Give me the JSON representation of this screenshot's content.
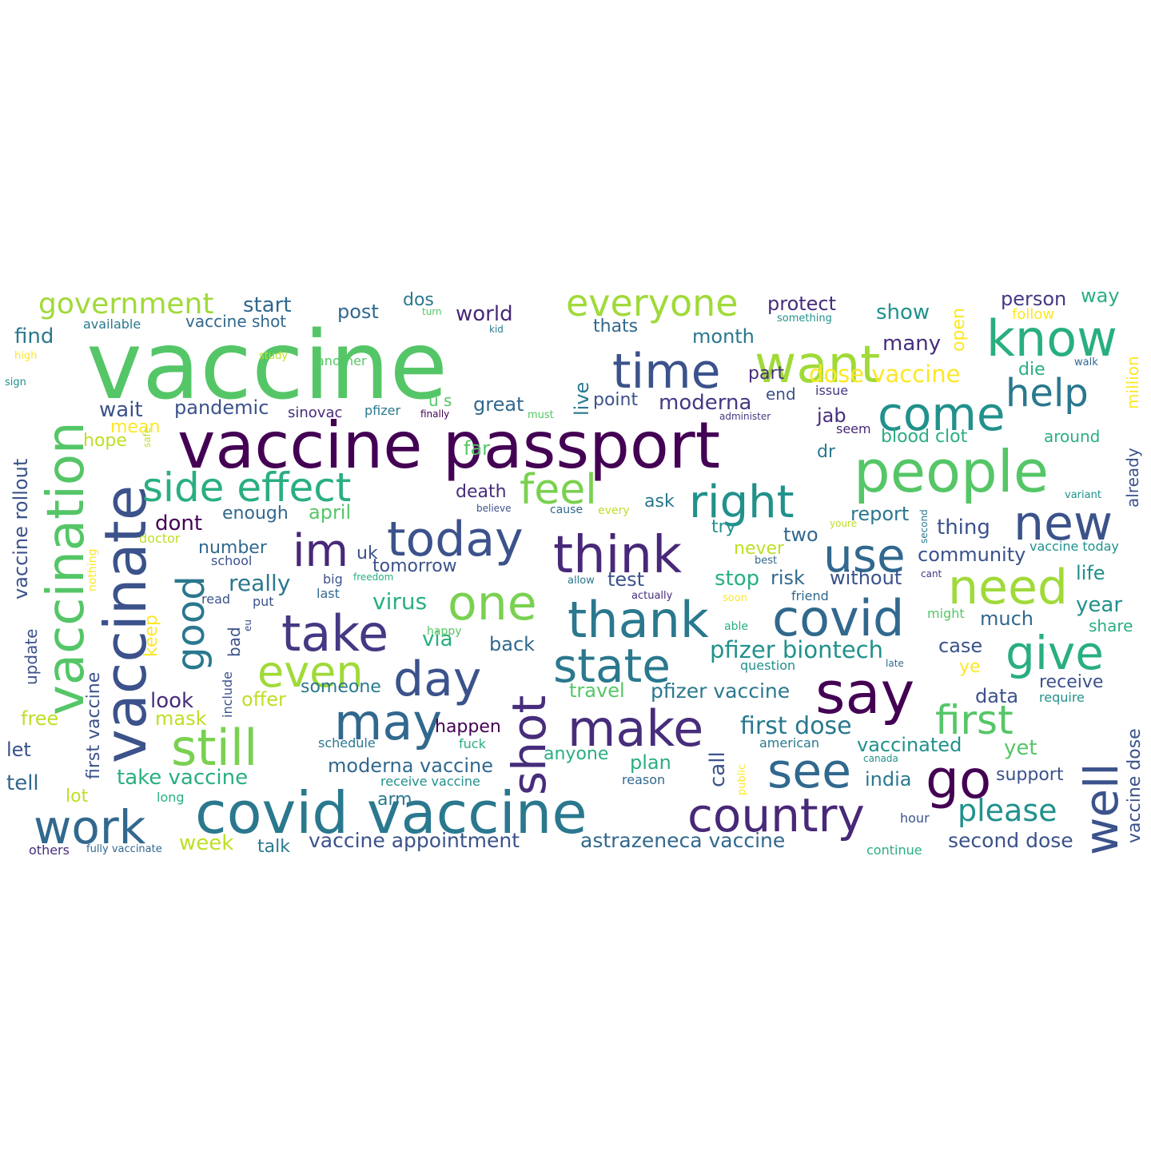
{
  "words": [
    {
      "text": "vaccine",
      "color": "#55c667"
    },
    {
      "text": "vaccine passport",
      "color": "#440154"
    },
    {
      "text": "people",
      "color": "#55c667"
    },
    {
      "text": "covid vaccine",
      "color": "#2a788e"
    },
    {
      "text": "vaccinate",
      "color": "#3b528b"
    },
    {
      "text": "vaccination",
      "color": "#55c667"
    },
    {
      "text": "say",
      "color": "#440154"
    },
    {
      "text": "think",
      "color": "#482878"
    },
    {
      "text": "today",
      "color": "#3b528b"
    },
    {
      "text": "want",
      "color": "#a0da39"
    },
    {
      "text": "know",
      "color": "#29af7f"
    },
    {
      "text": "time",
      "color": "#3b528b"
    },
    {
      "text": "come",
      "color": "#21918c"
    },
    {
      "text": "side effect",
      "color": "#29af7f"
    },
    {
      "text": "right",
      "color": "#21918c"
    },
    {
      "text": "thank",
      "color": "#2a788e"
    },
    {
      "text": "covid",
      "color": "#31688e"
    },
    {
      "text": "state",
      "color": "#2a788e"
    },
    {
      "text": "take",
      "color": "#443983"
    },
    {
      "text": "one",
      "color": "#7ad151"
    },
    {
      "text": "day",
      "color": "#3b528b"
    },
    {
      "text": "may",
      "color": "#31688e"
    },
    {
      "text": "make",
      "color": "#472d7b"
    },
    {
      "text": "still",
      "color": "#7ad151"
    },
    {
      "text": "even",
      "color": "#a0da39"
    },
    {
      "text": "work",
      "color": "#31688e"
    },
    {
      "text": "country",
      "color": "#482878"
    },
    {
      "text": "see",
      "color": "#31688e"
    },
    {
      "text": "go",
      "color": "#440154"
    },
    {
      "text": "well",
      "color": "#3b528b"
    },
    {
      "text": "shot",
      "color": "#472d7b"
    },
    {
      "text": "need",
      "color": "#a0da39"
    },
    {
      "text": "use",
      "color": "#31688e"
    },
    {
      "text": "new",
      "color": "#3b528b"
    },
    {
      "text": "give",
      "color": "#29af7f"
    },
    {
      "text": "first",
      "color": "#55c667"
    },
    {
      "text": "help",
      "color": "#2a788e"
    },
    {
      "text": "good",
      "color": "#2a788e"
    },
    {
      "text": "im",
      "color": "#482878"
    },
    {
      "text": "feel",
      "color": "#7ad151"
    },
    {
      "text": "everyone",
      "color": "#a0da39"
    },
    {
      "text": "government",
      "color": "#a0da39"
    },
    {
      "text": "please",
      "color": "#21918c"
    },
    {
      "text": "vaccine appointment",
      "color": "#3b528b"
    },
    {
      "text": "astrazeneca vaccine",
      "color": "#31688e"
    },
    {
      "text": "second dose",
      "color": "#3b528b"
    },
    {
      "text": "first dose",
      "color": "#2a788e"
    },
    {
      "text": "pfizer biontech",
      "color": "#21918c"
    },
    {
      "text": "pfizer vaccine",
      "color": "#2a788e"
    },
    {
      "text": "dose vaccine",
      "color": "#fde725"
    },
    {
      "text": "moderna vaccine",
      "color": "#31688e"
    },
    {
      "text": "take vaccine",
      "color": "#29af7f"
    },
    {
      "text": "vaccine rollout",
      "color": "#3b528b"
    },
    {
      "text": "first vaccine",
      "color": "#3b528b"
    },
    {
      "text": "vaccine dose",
      "color": "#3b528b"
    },
    {
      "text": "blood clot",
      "color": "#29af7f"
    },
    {
      "text": "vaccine shot",
      "color": "#31688e"
    },
    {
      "text": "vaccine today",
      "color": "#21918c"
    },
    {
      "text": "receive vaccine",
      "color": "#21918c"
    },
    {
      "text": "fully vaccinate",
      "color": "#31688e"
    },
    {
      "text": "start",
      "color": "#31688e"
    },
    {
      "text": "dos",
      "color": "#2a788e"
    },
    {
      "text": "post",
      "color": "#31688e"
    },
    {
      "text": "world",
      "color": "#482878"
    },
    {
      "text": "protect",
      "color": "#472d7b"
    },
    {
      "text": "show",
      "color": "#21918c"
    },
    {
      "text": "open",
      "color": "#fde725"
    },
    {
      "text": "person",
      "color": "#443983"
    },
    {
      "text": "way",
      "color": "#29af7f"
    },
    {
      "text": "thats",
      "color": "#31688e"
    },
    {
      "text": "month",
      "color": "#2a788e"
    },
    {
      "text": "many",
      "color": "#472d7b"
    },
    {
      "text": "find",
      "color": "#2a788e"
    },
    {
      "text": "available",
      "color": "#2a788e"
    },
    {
      "text": "million",
      "color": "#fde725"
    },
    {
      "text": "already",
      "color": "#3b528b"
    },
    {
      "text": "part",
      "color": "#472d7b"
    },
    {
      "text": "die",
      "color": "#29af7f"
    },
    {
      "text": "end",
      "color": "#3b528b"
    },
    {
      "text": "issue",
      "color": "#443983"
    },
    {
      "text": "moderna",
      "color": "#443983"
    },
    {
      "text": "point",
      "color": "#3b528b"
    },
    {
      "text": "live",
      "color": "#2a788e"
    },
    {
      "text": "great",
      "color": "#31688e"
    },
    {
      "text": "pandemic",
      "color": "#3b528b"
    },
    {
      "text": "sinovac",
      "color": "#472d7b"
    },
    {
      "text": "pfizer",
      "color": "#2a788e"
    },
    {
      "text": "wait",
      "color": "#3b528b"
    },
    {
      "text": "mean",
      "color": "#fde725"
    },
    {
      "text": "hope",
      "color": "#bddf26"
    },
    {
      "text": "jab",
      "color": "#472d7b"
    },
    {
      "text": "seem",
      "color": "#482878"
    },
    {
      "text": "around",
      "color": "#29af7f"
    },
    {
      "text": "dr",
      "color": "#2a788e"
    },
    {
      "text": "far",
      "color": "#55c667"
    },
    {
      "text": "death",
      "color": "#472d7b"
    },
    {
      "text": "ask",
      "color": "#2a788e"
    },
    {
      "text": "enough",
      "color": "#31688e"
    },
    {
      "text": "april",
      "color": "#55c667"
    },
    {
      "text": "dont",
      "color": "#440154"
    },
    {
      "text": "report",
      "color": "#2a788e"
    },
    {
      "text": "thing",
      "color": "#3b528b"
    },
    {
      "text": "try",
      "color": "#21918c"
    },
    {
      "text": "two",
      "color": "#31688e"
    },
    {
      "text": "community",
      "color": "#3b528b"
    },
    {
      "text": "number",
      "color": "#31688e"
    },
    {
      "text": "uk",
      "color": "#3b528b"
    },
    {
      "text": "never",
      "color": "#bddf26"
    },
    {
      "text": "tomorrow",
      "color": "#3b528b"
    },
    {
      "text": "really",
      "color": "#2a788e"
    },
    {
      "text": "test",
      "color": "#3b528b"
    },
    {
      "text": "stop",
      "color": "#29af7f"
    },
    {
      "text": "risk",
      "color": "#31688e"
    },
    {
      "text": "without",
      "color": "#3b528b"
    },
    {
      "text": "life",
      "color": "#21918c"
    },
    {
      "text": "virus",
      "color": "#29af7f"
    },
    {
      "text": "year",
      "color": "#21918c"
    },
    {
      "text": "much",
      "color": "#31688e"
    },
    {
      "text": "keep",
      "color": "#fde725"
    },
    {
      "text": "via",
      "color": "#29af7f"
    },
    {
      "text": "back",
      "color": "#31688e"
    },
    {
      "text": "case",
      "color": "#3b528b"
    },
    {
      "text": "share",
      "color": "#29af7f"
    },
    {
      "text": "ye",
      "color": "#fde725"
    },
    {
      "text": "update",
      "color": "#3b528b"
    },
    {
      "text": "bad",
      "color": "#3b528b"
    },
    {
      "text": "someone",
      "color": "#2a788e"
    },
    {
      "text": "receive",
      "color": "#3b528b"
    },
    {
      "text": "look",
      "color": "#472d7b"
    },
    {
      "text": "offer",
      "color": "#bddf26"
    },
    {
      "text": "travel",
      "color": "#55c667"
    },
    {
      "text": "data",
      "color": "#3b528b"
    },
    {
      "text": "free",
      "color": "#bddf26"
    },
    {
      "text": "mask",
      "color": "#bddf26"
    },
    {
      "text": "happen",
      "color": "#440154"
    },
    {
      "text": "call",
      "color": "#3b528b"
    },
    {
      "text": "let",
      "color": "#3b528b"
    },
    {
      "text": "anyone",
      "color": "#29af7f"
    },
    {
      "text": "plan",
      "color": "#29af7f"
    },
    {
      "text": "vaccinated",
      "color": "#21918c"
    },
    {
      "text": "yet",
      "color": "#55c667"
    },
    {
      "text": "tell",
      "color": "#31688e"
    },
    {
      "text": "india",
      "color": "#2a788e"
    },
    {
      "text": "support",
      "color": "#3b528b"
    },
    {
      "text": "lot",
      "color": "#bddf26"
    },
    {
      "text": "arm",
      "color": "#2a788e"
    },
    {
      "text": "week",
      "color": "#bddf26"
    },
    {
      "text": "talk",
      "color": "#2a788e"
    },
    {
      "text": "others",
      "color": "#472d7b"
    },
    {
      "text": "continue",
      "color": "#29af7f"
    },
    {
      "text": "hour",
      "color": "#3b528b"
    },
    {
      "text": "turn",
      "color": "#55c667"
    },
    {
      "text": "kid",
      "color": "#2a788e"
    },
    {
      "text": "something",
      "color": "#21918c"
    },
    {
      "text": "follow",
      "color": "#fde725"
    },
    {
      "text": "high",
      "color": "#fde725"
    },
    {
      "text": "study",
      "color": "#bddf26"
    },
    {
      "text": "another",
      "color": "#55c667"
    },
    {
      "text": "sign",
      "color": "#21918c"
    },
    {
      "text": "walk",
      "color": "#31688e"
    },
    {
      "text": "u s",
      "color": "#55c667"
    },
    {
      "text": "finally",
      "color": "#440154"
    },
    {
      "text": "must",
      "color": "#55c667"
    },
    {
      "text": "administer",
      "color": "#443983"
    },
    {
      "text": "safe",
      "color": "#bddf26"
    },
    {
      "text": "believe",
      "color": "#3b528b"
    },
    {
      "text": "cause",
      "color": "#31688e"
    },
    {
      "text": "every",
      "color": "#bddf26"
    },
    {
      "text": "variant",
      "color": "#21918c"
    },
    {
      "text": "second",
      "color": "#2a788e"
    },
    {
      "text": "youre",
      "color": "#bddf26"
    },
    {
      "text": "doctor",
      "color": "#bddf26"
    },
    {
      "text": "nothing",
      "color": "#fde725"
    },
    {
      "text": "school",
      "color": "#3b528b"
    },
    {
      "text": "big",
      "color": "#3b528b"
    },
    {
      "text": "freedom",
      "color": "#29af7f"
    },
    {
      "text": "allow",
      "color": "#2a788e"
    },
    {
      "text": "best",
      "color": "#31688e"
    },
    {
      "text": "cant",
      "color": "#443983"
    },
    {
      "text": "read",
      "color": "#3b528b"
    },
    {
      "text": "put",
      "color": "#3b528b"
    },
    {
      "text": "last",
      "color": "#31688e"
    },
    {
      "text": "actually",
      "color": "#472d7b"
    },
    {
      "text": "soon",
      "color": "#fde725"
    },
    {
      "text": "friend",
      "color": "#31688e"
    },
    {
      "text": "able",
      "color": "#29af7f"
    },
    {
      "text": "might",
      "color": "#55c667"
    },
    {
      "text": "eu",
      "color": "#3b528b"
    },
    {
      "text": "happy",
      "color": "#55c667"
    },
    {
      "text": "question",
      "color": "#21918c"
    },
    {
      "text": "late",
      "color": "#31688e"
    },
    {
      "text": "include",
      "color": "#3b528b"
    },
    {
      "text": "require",
      "color": "#21918c"
    },
    {
      "text": "schedule",
      "color": "#2a788e"
    },
    {
      "text": "fuck",
      "color": "#29af7f"
    },
    {
      "text": "american",
      "color": "#2a788e"
    },
    {
      "text": "canada",
      "color": "#21918c"
    },
    {
      "text": "public",
      "color": "#fde725"
    },
    {
      "text": "long",
      "color": "#29af7f"
    },
    {
      "text": "reason",
      "color": "#31688e"
    }
  ]
}
